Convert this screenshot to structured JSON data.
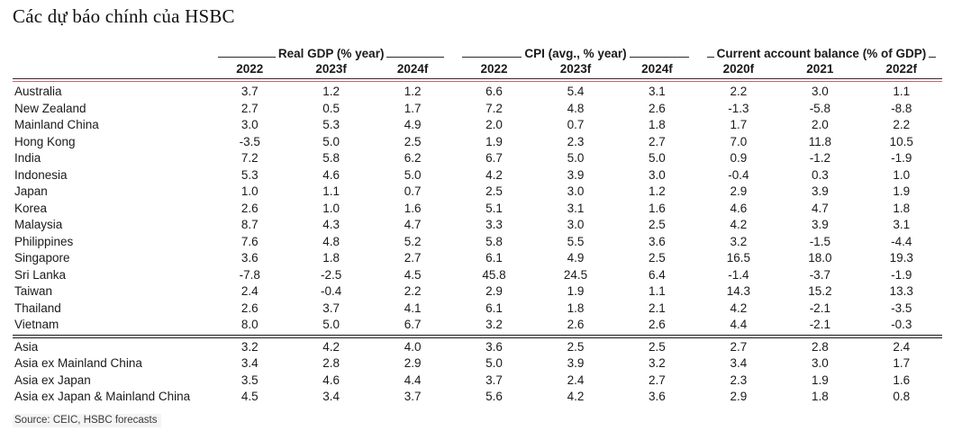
{
  "title": "Các dự báo chính của HSBC",
  "chart_data": {
    "type": "table",
    "title": "Các dự báo chính của HSBC",
    "source": "Source: CEIC, HSBC forecasts",
    "groups": [
      {
        "label": "Real GDP (% year)",
        "years": [
          "2022",
          "2023f",
          "2024f"
        ]
      },
      {
        "label": "CPI (avg., % year)",
        "years": [
          "2022",
          "2023f",
          "2024f"
        ]
      },
      {
        "label": "Current account balance (% of GDP)",
        "years": [
          "2020f",
          "2021",
          "2022f"
        ]
      }
    ],
    "rows": [
      {
        "name": "Australia",
        "gdp": [
          "3.7",
          "1.2",
          "1.2"
        ],
        "cpi": [
          "6.6",
          "5.4",
          "3.1"
        ],
        "ca": [
          "2.2",
          "3.0",
          "1.1"
        ]
      },
      {
        "name": "New Zealand",
        "gdp": [
          "2.7",
          "0.5",
          "1.7"
        ],
        "cpi": [
          "7.2",
          "4.8",
          "2.6"
        ],
        "ca": [
          "-1.3",
          "-5.8",
          "-8.8"
        ]
      },
      {
        "name": "Mainland China",
        "gdp": [
          "3.0",
          "5.3",
          "4.9"
        ],
        "cpi": [
          "2.0",
          "0.7",
          "1.8"
        ],
        "ca": [
          "1.7",
          "2.0",
          "2.2"
        ]
      },
      {
        "name": "Hong Kong",
        "gdp": [
          "-3.5",
          "5.0",
          "2.5"
        ],
        "cpi": [
          "1.9",
          "2.3",
          "2.7"
        ],
        "ca": [
          "7.0",
          "11.8",
          "10.5"
        ]
      },
      {
        "name": "India",
        "gdp": [
          "7.2",
          "5.8",
          "6.2"
        ],
        "cpi": [
          "6.7",
          "5.0",
          "5.0"
        ],
        "ca": [
          "0.9",
          "-1.2",
          "-1.9"
        ]
      },
      {
        "name": "Indonesia",
        "gdp": [
          "5.3",
          "4.6",
          "5.0"
        ],
        "cpi": [
          "4.2",
          "3.9",
          "3.0"
        ],
        "ca": [
          "-0.4",
          "0.3",
          "1.0"
        ]
      },
      {
        "name": "Japan",
        "gdp": [
          "1.0",
          "1.1",
          "0.7"
        ],
        "cpi": [
          "2.5",
          "3.0",
          "1.2"
        ],
        "ca": [
          "2.9",
          "3.9",
          "1.9"
        ]
      },
      {
        "name": "Korea",
        "gdp": [
          "2.6",
          "1.0",
          "1.6"
        ],
        "cpi": [
          "5.1",
          "3.1",
          "1.6"
        ],
        "ca": [
          "4.6",
          "4.7",
          "1.8"
        ]
      },
      {
        "name": "Malaysia",
        "gdp": [
          "8.7",
          "4.3",
          "4.7"
        ],
        "cpi": [
          "3.3",
          "3.0",
          "2.5"
        ],
        "ca": [
          "4.2",
          "3.9",
          "3.1"
        ]
      },
      {
        "name": "Philippines",
        "gdp": [
          "7.6",
          "4.8",
          "5.2"
        ],
        "cpi": [
          "5.8",
          "5.5",
          "3.6"
        ],
        "ca": [
          "3.2",
          "-1.5",
          "-4.4"
        ]
      },
      {
        "name": "Singapore",
        "gdp": [
          "3.6",
          "1.8",
          "2.7"
        ],
        "cpi": [
          "6.1",
          "4.9",
          "2.5"
        ],
        "ca": [
          "16.5",
          "18.0",
          "19.3"
        ]
      },
      {
        "name": "Sri Lanka",
        "gdp": [
          "-7.8",
          "-2.5",
          "4.5"
        ],
        "cpi": [
          "45.8",
          "24.5",
          "6.4"
        ],
        "ca": [
          "-1.4",
          "-3.7",
          "-1.9"
        ]
      },
      {
        "name": "Taiwan",
        "gdp": [
          "2.4",
          "-0.4",
          "2.2"
        ],
        "cpi": [
          "2.9",
          "1.9",
          "1.1"
        ],
        "ca": [
          "14.3",
          "15.2",
          "13.3"
        ]
      },
      {
        "name": "Thailand",
        "gdp": [
          "2.6",
          "3.7",
          "4.1"
        ],
        "cpi": [
          "6.1",
          "1.8",
          "2.1"
        ],
        "ca": [
          "4.2",
          "-2.1",
          "-3.5"
        ]
      },
      {
        "name": "Vietnam",
        "gdp": [
          "8.0",
          "5.0",
          "6.7"
        ],
        "cpi": [
          "3.2",
          "2.6",
          "2.6"
        ],
        "ca": [
          "4.4",
          "-2.1",
          "-0.3"
        ]
      }
    ],
    "aggregate_rows": [
      {
        "name": "Asia",
        "gdp": [
          "3.2",
          "4.2",
          "4.0"
        ],
        "cpi": [
          "3.6",
          "2.5",
          "2.5"
        ],
        "ca": [
          "2.7",
          "2.8",
          "2.4"
        ]
      },
      {
        "name": "Asia ex Mainland China",
        "gdp": [
          "3.4",
          "2.8",
          "2.9"
        ],
        "cpi": [
          "5.0",
          "3.9",
          "3.2"
        ],
        "ca": [
          "3.4",
          "3.0",
          "1.7"
        ]
      },
      {
        "name": "Asia ex Japan",
        "gdp": [
          "3.5",
          "4.6",
          "4.4"
        ],
        "cpi": [
          "3.7",
          "2.4",
          "2.7"
        ],
        "ca": [
          "2.3",
          "1.9",
          "1.6"
        ]
      },
      {
        "name": "Asia ex Japan & Mainland China",
        "gdp": [
          "4.5",
          "3.4",
          "3.7"
        ],
        "cpi": [
          "5.6",
          "4.2",
          "3.6"
        ],
        "ca": [
          "2.9",
          "1.8",
          "0.8"
        ]
      }
    ]
  }
}
